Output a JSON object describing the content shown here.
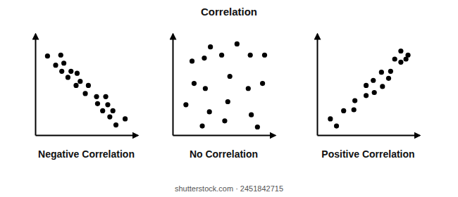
{
  "title": "Correlation",
  "footer": "shutterstock.com · 2451842715",
  "chart_data": [
    {
      "type": "scatter",
      "title": "Negative Correlation",
      "color": "#000000",
      "x": [
        12,
        25,
        20,
        28,
        26,
        35,
        32,
        41,
        44,
        40,
        52,
        49,
        60,
        69,
        61,
        71,
        66,
        76,
        73,
        88,
        79
      ],
      "values": [
        78,
        79,
        69,
        71,
        63,
        63,
        57,
        61,
        53,
        49,
        49,
        41,
        38,
        38,
        31,
        30,
        24,
        24,
        18,
        16,
        10
      ],
      "xlim": [
        0,
        100
      ],
      "ylim": [
        0,
        100
      ],
      "xticks": [],
      "yticks": [],
      "tick_labels": false
    },
    {
      "type": "scatter",
      "title": "No Correlation",
      "color": "#000000",
      "x": [
        19,
        31,
        37,
        48,
        63,
        76,
        90,
        21,
        32,
        56,
        74,
        88,
        13,
        36,
        54,
        77,
        29,
        51,
        83
      ],
      "values": [
        73,
        76,
        87,
        79,
        90,
        79,
        79,
        51,
        46,
        58,
        46,
        51,
        30,
        23,
        33,
        20,
        9,
        14,
        8
      ],
      "xlim": [
        0,
        100
      ],
      "ylim": [
        0,
        100
      ],
      "xticks": [],
      "yticks": [],
      "tick_labels": false
    },
    {
      "type": "scatter",
      "title": "Positive Correlation",
      "color": "#000000",
      "x": [
        13,
        19,
        26,
        36,
        37,
        48,
        48,
        56,
        55,
        64,
        63,
        70,
        72,
        82,
        76,
        87,
        82,
        89
      ],
      "values": [
        16,
        9,
        24,
        25,
        34,
        39,
        49,
        42,
        54,
        48,
        62,
        56,
        63,
        72,
        75,
        75,
        83,
        79
      ],
      "xlim": [
        0,
        100
      ],
      "ylim": [
        0,
        100
      ],
      "xticks": [],
      "yticks": [],
      "tick_labels": false
    }
  ]
}
